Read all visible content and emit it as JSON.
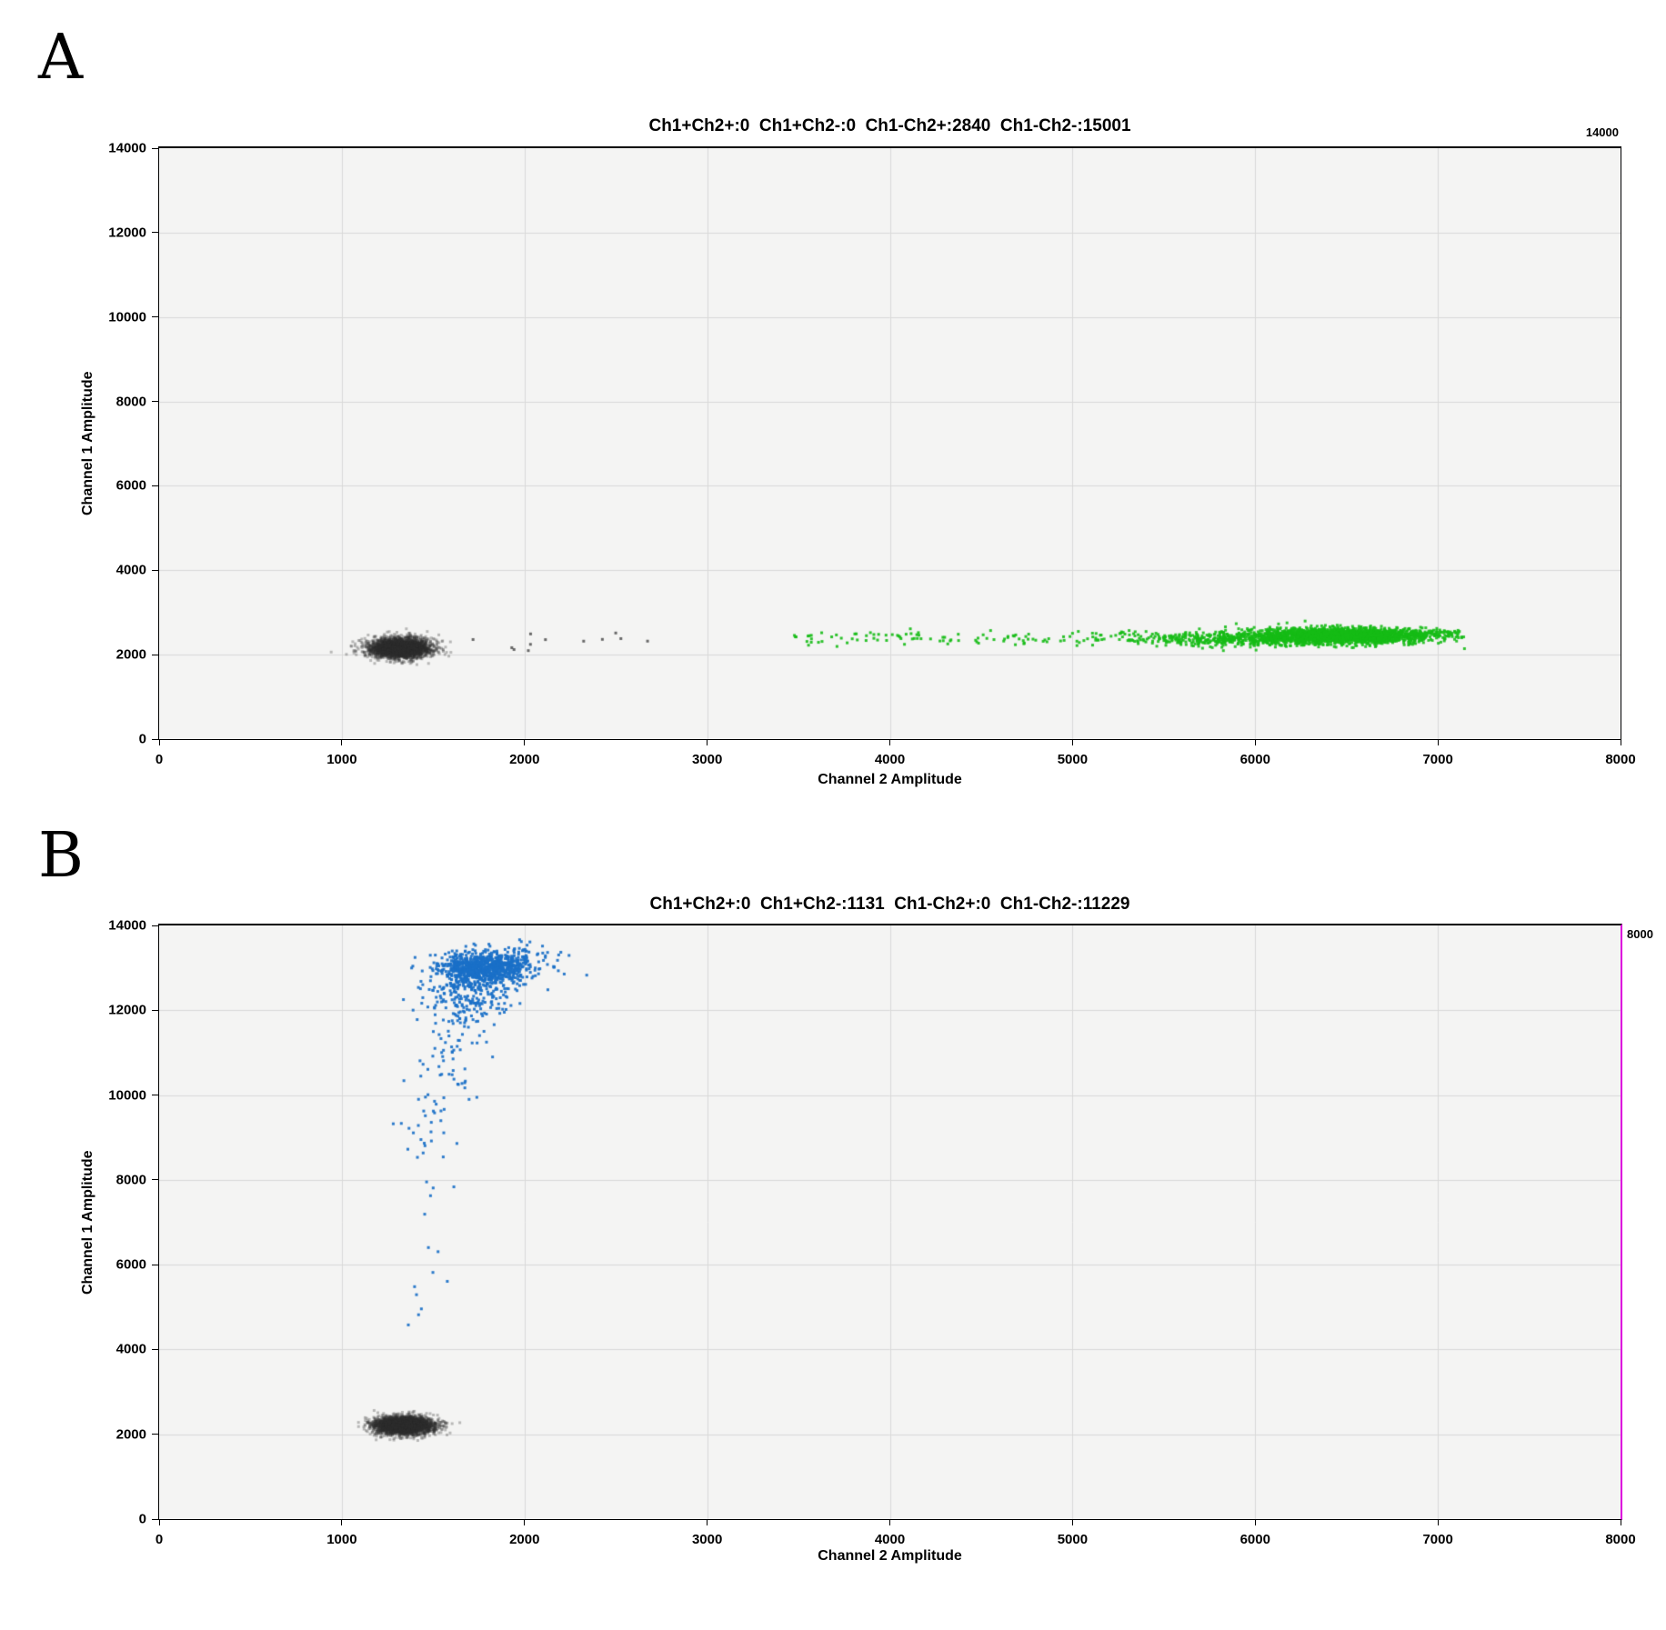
{
  "figure_labels": {
    "panel_a": "A",
    "panel_b": "B"
  },
  "chart_data": [
    {
      "id": "A",
      "type": "scatter",
      "title": "Ch1+Ch2+:0  Ch1+Ch2-:0  Ch1-Ch2+:2840  Ch1-Ch2-:15001",
      "corner_label": "14000",
      "xlabel": "Channel 2 Amplitude",
      "ylabel": "Channel 1 Amplitude",
      "xlim": [
        0,
        8000
      ],
      "ylim": [
        0,
        14000
      ],
      "xticks": [
        0,
        1000,
        2000,
        3000,
        4000,
        5000,
        6000,
        7000,
        8000
      ],
      "yticks": [
        0,
        2000,
        4000,
        6000,
        8000,
        10000,
        12000,
        14000
      ],
      "grid": true,
      "counts": {
        "Ch1+Ch2+": 0,
        "Ch1+Ch2-": 0,
        "Ch1-Ch2+": 2840,
        "Ch1-Ch2-": 15001
      },
      "colors": {
        "plot_bg": "#f4f4f3",
        "grid": "#d9d9d9",
        "frame": "#000000",
        "negative_gray": "#2e2e2e",
        "ch2_positive_green": "#16bc16"
      },
      "seed": 7,
      "clusters": [
        {
          "name": "ch1neg-ch2neg-droplets",
          "kind": "gauss",
          "n": 3200,
          "cx": 1320,
          "cy": 2160,
          "sx": 82,
          "sy": 115,
          "color": "#2e2e2e",
          "alpha": 0.3,
          "size": 3
        },
        {
          "name": "gray-outliers",
          "kind": "rect",
          "n": 12,
          "x0": 1520,
          "x1": 2950,
          "y0": 2080,
          "y1": 2520,
          "color": "#3a3a3a",
          "alpha": 0.75,
          "size": 3
        },
        {
          "name": "ch2pos-sparse-rain",
          "kind": "band",
          "n": 130,
          "x0": 3470,
          "x1": 5650,
          "cy": 2390,
          "sy": 85,
          "color": "#16bc16",
          "alpha": 0.9,
          "size": 3
        },
        {
          "name": "ch2pos-mid",
          "kind": "gauss",
          "n": 520,
          "cx": 6000,
          "cy": 2390,
          "sx": 330,
          "sy": 95,
          "color": "#16bc16",
          "alpha": 0.88,
          "size": 3
        },
        {
          "name": "ch2pos-dense",
          "kind": "gauss",
          "n": 1950,
          "cx": 6480,
          "cy": 2450,
          "sx": 235,
          "sy": 90,
          "xmax": 7150,
          "color": "#16bc16",
          "alpha": 0.88,
          "size": 3
        },
        {
          "name": "ch2pos-tip",
          "kind": "band",
          "n": 40,
          "x0": 6900,
          "x1": 7120,
          "cy": 2520,
          "sy": 55,
          "color": "#16bc16",
          "alpha": 0.9,
          "size": 3
        }
      ]
    },
    {
      "id": "B",
      "type": "scatter",
      "title": "Ch1+Ch2+:0  Ch1+Ch2-:1131  Ch1-Ch2+:0  Ch1-Ch2-:11229",
      "corner_label": "8000",
      "xlabel": "Channel 2 Amplitude",
      "ylabel": "Channel 1 Amplitude",
      "xlim": [
        0,
        8000
      ],
      "ylim": [
        0,
        14000
      ],
      "xticks": [
        0,
        1000,
        2000,
        3000,
        4000,
        5000,
        6000,
        7000,
        8000
      ],
      "yticks": [
        0,
        2000,
        4000,
        6000,
        8000,
        10000,
        12000,
        14000
      ],
      "grid": true,
      "counts": {
        "Ch1+Ch2+": 0,
        "Ch1+Ch2-": 1131,
        "Ch1-Ch2+": 0,
        "Ch1-Ch2-": 11229
      },
      "colors": {
        "plot_bg": "#f4f4f3",
        "grid": "#d9d9d9",
        "frame": "#000000",
        "right_border": "#dd00dd",
        "negative_gray": "#2e2e2e",
        "ch1_positive_blue": "#1a70c8"
      },
      "seed": 11,
      "clusters": [
        {
          "name": "ch1pos-core",
          "kind": "gauss",
          "n": 760,
          "cx": 1765,
          "cy": 12980,
          "sx": 105,
          "sy": 185,
          "ymax": 13680,
          "color": "#1a70c8",
          "alpha": 0.92,
          "size": 3
        },
        {
          "name": "ch1pos-spread",
          "kind": "gauss",
          "n": 210,
          "cx": 1860,
          "cy": 13120,
          "sx": 170,
          "sy": 210,
          "ymax": 13680,
          "color": "#1a70c8",
          "alpha": 0.92,
          "size": 3
        },
        {
          "name": "ch1pos-fringe",
          "kind": "gauss",
          "n": 190,
          "cx": 1680,
          "cy": 12300,
          "sx": 125,
          "sy": 330,
          "color": "#1a70c8",
          "alpha": 0.92,
          "size": 3
        },
        {
          "name": "ch1pos-tail",
          "kind": "tail",
          "n": 105,
          "y0": 8300,
          "y1": 12350,
          "x0": 1450,
          "x1": 1700,
          "sx": 85,
          "bias": 0.8,
          "color": "#1a70c8",
          "alpha": 0.92,
          "size": 3
        },
        {
          "name": "ch1pos-tail-sparse",
          "kind": "tail",
          "n": 14,
          "y0": 4350,
          "y1": 8300,
          "x0": 1430,
          "x1": 1520,
          "sx": 60,
          "bias": 1,
          "color": "#1a70c8",
          "alpha": 0.92,
          "size": 3
        },
        {
          "name": "ch1neg-ch2neg-droplets",
          "kind": "gauss",
          "n": 3200,
          "cx": 1340,
          "cy": 2210,
          "sx": 80,
          "sy": 105,
          "color": "#2e2e2e",
          "alpha": 0.3,
          "size": 3
        }
      ]
    }
  ]
}
